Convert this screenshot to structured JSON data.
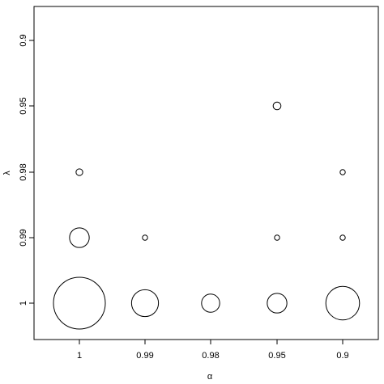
{
  "chart_data": {
    "type": "scatter",
    "title": "",
    "xlabel": "α",
    "ylabel": "λ",
    "x_ticks": [
      "1",
      "0.99",
      "0.98",
      "0.95",
      "0.9"
    ],
    "y_ticks": [
      "1",
      "0.99",
      "0.98",
      "0.95",
      "0.9"
    ],
    "grid": false,
    "legend": "none",
    "points": [
      {
        "alpha": "1",
        "lambda": "1",
        "relative_size": 1.0
      },
      {
        "alpha": "0.99",
        "lambda": "1",
        "relative_size": 0.52
      },
      {
        "alpha": "0.98",
        "lambda": "1",
        "relative_size": 0.35
      },
      {
        "alpha": "0.95",
        "lambda": "1",
        "relative_size": 0.38
      },
      {
        "alpha": "0.9",
        "lambda": "1",
        "relative_size": 0.65
      },
      {
        "alpha": "1",
        "lambda": "0.99",
        "relative_size": 0.38
      },
      {
        "alpha": "0.99",
        "lambda": "0.99",
        "relative_size": 0.1
      },
      {
        "alpha": "0.95",
        "lambda": "0.99",
        "relative_size": 0.1
      },
      {
        "alpha": "0.9",
        "lambda": "0.99",
        "relative_size": 0.1
      },
      {
        "alpha": "1",
        "lambda": "0.98",
        "relative_size": 0.13
      },
      {
        "alpha": "0.9",
        "lambda": "0.98",
        "relative_size": 0.1
      },
      {
        "alpha": "0.95",
        "lambda": "0.95",
        "relative_size": 0.15
      }
    ]
  }
}
